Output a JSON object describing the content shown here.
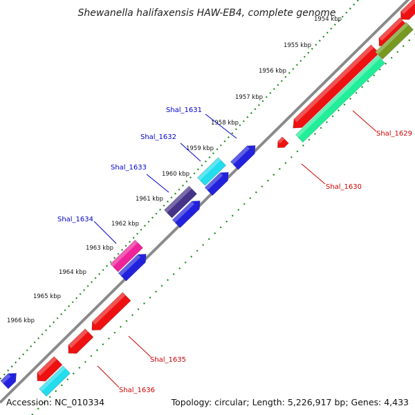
{
  "title": "Shewanella halifaxensis HAW-EB4, complete genome",
  "footer": {
    "accession": "Accession: NC_010334",
    "summary": "Topology: circular; Length: 5,226,917 bp; Genes: 4,433"
  },
  "colors": {
    "backbone": "#8a8a8a",
    "tick_dots": "#1a8a1a",
    "label_blue": "#0000cc",
    "label_red": "#cc0000"
  },
  "ticks": [
    {
      "label": "1954 kbp"
    },
    {
      "label": "1955 kbp"
    },
    {
      "label": "1956 kbp"
    },
    {
      "label": "1957 kbp"
    },
    {
      "label": "1958 kbp"
    },
    {
      "label": "1959 kbp"
    },
    {
      "label": "1960 kbp"
    },
    {
      "label": "1961 kbp"
    },
    {
      "label": "1962 kbp"
    },
    {
      "label": "1963 kbp"
    },
    {
      "label": "1964 kbp"
    },
    {
      "label": "1965 kbp"
    },
    {
      "label": "1966 kbp"
    }
  ],
  "gene_labels_left": [
    {
      "name": "Shal_1631",
      "color": "#0000cc"
    },
    {
      "name": "Shal_1632",
      "color": "#0000cc"
    },
    {
      "name": "Shal_1633",
      "color": "#0000cc"
    },
    {
      "name": "Shal_1634",
      "color": "#0000cc"
    }
  ],
  "gene_labels_right": [
    {
      "name": "Shal_1629",
      "color": "#cc0000"
    },
    {
      "name": "Shal_1630",
      "color": "#cc0000"
    },
    {
      "name": "Shal_1635",
      "color": "#cc0000"
    },
    {
      "name": "Shal_1636",
      "color": "#cc0000"
    }
  ],
  "features": [
    {
      "name": "gene",
      "color": "#ee1111",
      "strand": "reverse"
    },
    {
      "name": "gene",
      "color": "#2222dd",
      "strand": "forward"
    },
    {
      "name": "gene",
      "color": "#22ddee",
      "strand": "forward"
    },
    {
      "name": "gene",
      "color": "#443388",
      "strand": "forward"
    },
    {
      "name": "gene",
      "color": "#ee2299",
      "strand": "forward"
    },
    {
      "name": "cds",
      "color": "#22ee99",
      "strand": "reverse"
    },
    {
      "name": "cds",
      "color": "#779922",
      "strand": "reverse"
    }
  ]
}
